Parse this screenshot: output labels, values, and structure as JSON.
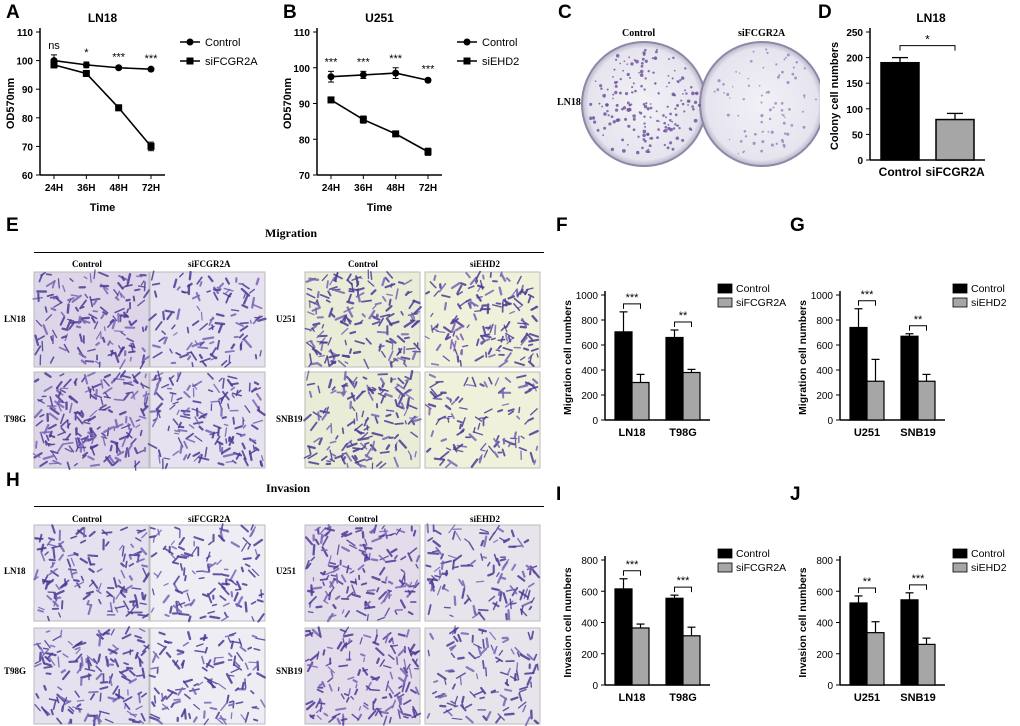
{
  "panels": {
    "A": "A",
    "B": "B",
    "C": "C",
    "D": "D",
    "E": "E",
    "F": "F",
    "G": "G",
    "H": "H",
    "I": "I",
    "J": "J"
  },
  "chart_data": [
    {
      "id": "A",
      "type": "line",
      "title": "LN18",
      "xlabel": "Time",
      "ylabel": "OD570nm",
      "categories": [
        "24H",
        "36H",
        "48H",
        "72H"
      ],
      "ylim": [
        60,
        110
      ],
      "yticks": [
        60,
        70,
        80,
        90,
        100,
        110
      ],
      "series": [
        {
          "name": "Control",
          "marker": "circle",
          "values": [
            100,
            98.5,
            97.5,
            97
          ],
          "errors": [
            2,
            1,
            0.5,
            0.5
          ]
        },
        {
          "name": "siFCGR2A",
          "marker": "square",
          "values": [
            98.5,
            95.5,
            83.5,
            70
          ],
          "errors": [
            1,
            0.5,
            1,
            1.5
          ]
        }
      ],
      "significance": [
        "ns",
        "*",
        "***",
        "***"
      ],
      "legend": "top-right"
    },
    {
      "id": "B",
      "type": "line",
      "title": "U251",
      "xlabel": "Time",
      "ylabel": "OD570nm",
      "categories": [
        "24H",
        "36H",
        "48H",
        "72H"
      ],
      "ylim": [
        70,
        110
      ],
      "yticks": [
        70,
        80,
        90,
        100,
        110
      ],
      "series": [
        {
          "name": "Control",
          "marker": "circle",
          "values": [
            97.5,
            98,
            98.5,
            96.5
          ],
          "errors": [
            1.5,
            1,
            1.5,
            0.5
          ]
        },
        {
          "name": "siEHD2",
          "marker": "square",
          "values": [
            91,
            85.5,
            81.5,
            76.5
          ],
          "errors": [
            0.5,
            1,
            0.5,
            1
          ]
        }
      ],
      "significance": [
        "***",
        "***",
        "***",
        "***"
      ],
      "legend": "top-right"
    },
    {
      "id": "D",
      "type": "bar",
      "title": "LN18",
      "xlabel": "",
      "ylabel": "Colony cell numbers",
      "categories": [
        "Control",
        "siFCGR2A"
      ],
      "ylim": [
        0,
        250
      ],
      "yticks": [
        0,
        50,
        100,
        150,
        200,
        250
      ],
      "values": [
        190,
        79
      ],
      "errors": [
        10,
        12
      ],
      "colors": [
        "#000000",
        "#a6a6a6"
      ],
      "significance": [
        {
          "between": [
            0,
            1
          ],
          "label": "*"
        }
      ]
    },
    {
      "id": "F",
      "type": "bar",
      "title": "",
      "xlabel": "",
      "ylabel": "Migration cell numbers",
      "categories": [
        "LN18",
        "T98G"
      ],
      "ylim": [
        0,
        1000
      ],
      "yticks": [
        0,
        200,
        400,
        600,
        800,
        1000
      ],
      "series": [
        {
          "name": "Control",
          "color": "#000000",
          "values": [
            705,
            660
          ],
          "errors": [
            160,
            60
          ]
        },
        {
          "name": "siFCGR2A",
          "color": "#a6a6a6",
          "values": [
            300,
            380
          ],
          "errors": [
            65,
            25
          ]
        }
      ],
      "significance": [
        "***",
        "**"
      ],
      "legend": "top-right"
    },
    {
      "id": "G",
      "type": "bar",
      "title": "",
      "xlabel": "",
      "ylabel": "Migration cell numbers",
      "categories": [
        "U251",
        "SNB19"
      ],
      "ylim": [
        0,
        1000
      ],
      "yticks": [
        0,
        200,
        400,
        600,
        800,
        1000
      ],
      "series": [
        {
          "name": "Control",
          "color": "#000000",
          "values": [
            740,
            670
          ],
          "errors": [
            150,
            20
          ]
        },
        {
          "name": "siEHD2",
          "color": "#a6a6a6",
          "values": [
            310,
            310
          ],
          "errors": [
            175,
            55
          ]
        }
      ],
      "significance": [
        "***",
        "**"
      ],
      "legend": "top-right"
    },
    {
      "id": "I",
      "type": "bar",
      "title": "",
      "xlabel": "",
      "ylabel": "Invasion cell numbers",
      "categories": [
        "LN18",
        "T98G"
      ],
      "ylim": [
        0,
        800
      ],
      "yticks": [
        0,
        200,
        400,
        600,
        800
      ],
      "series": [
        {
          "name": "Control",
          "color": "#000000",
          "values": [
            615,
            555
          ],
          "errors": [
            65,
            20
          ]
        },
        {
          "name": "siFCGR2A",
          "color": "#a6a6a6",
          "values": [
            365,
            315
          ],
          "errors": [
            25,
            55
          ]
        }
      ],
      "significance": [
        "***",
        "***"
      ],
      "legend": "top-right"
    },
    {
      "id": "J",
      "type": "bar",
      "title": "",
      "xlabel": "",
      "ylabel": "Invasion cell numbers",
      "categories": [
        "U251",
        "SNB19"
      ],
      "ylim": [
        0,
        800
      ],
      "yticks": [
        0,
        200,
        400,
        600,
        800
      ],
      "series": [
        {
          "name": "Control",
          "color": "#000000",
          "values": [
            525,
            545
          ],
          "errors": [
            45,
            45
          ]
        },
        {
          "name": "siEHD2",
          "color": "#a6a6a6",
          "values": [
            335,
            260
          ],
          "errors": [
            70,
            40
          ]
        }
      ],
      "significance": [
        "**",
        "***"
      ],
      "legend": "top-right"
    }
  ],
  "panel_c": {
    "headers": [
      "Control",
      "siFCGR2A"
    ],
    "row_label": "LN18"
  },
  "panel_e": {
    "title": "Migration",
    "left_headers": [
      "Control",
      "siFCGR2A"
    ],
    "right_headers": [
      "Control",
      "siEHD2"
    ],
    "left_rows": [
      "LN18",
      "T98G"
    ],
    "right_rows": [
      "U251",
      "SNB19"
    ]
  },
  "panel_h": {
    "title": "Invasion",
    "left_headers": [
      "Control",
      "siFCGR2A"
    ],
    "right_headers": [
      "Control",
      "siEHD2"
    ],
    "left_rows": [
      "LN18",
      "T98G"
    ],
    "right_rows": [
      "U251",
      "SNB19"
    ]
  },
  "colors": {
    "control": "#000000",
    "knockdown": "#a6a6a6",
    "stain": "#5b4a9e"
  }
}
